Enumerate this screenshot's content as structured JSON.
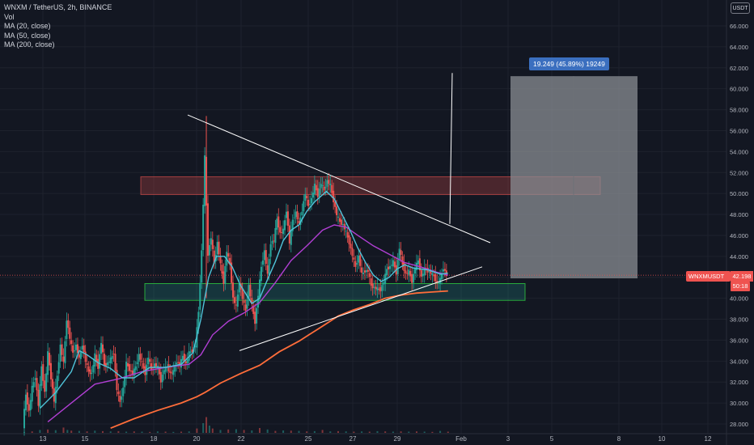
{
  "legend": {
    "symbol": "WNXM / TetherUS, 2h, BINANCE",
    "vol": "Vol",
    "ma20": "MA (20, close)",
    "ma50": "MA (50, close)",
    "ma200": "MA (200, close)"
  },
  "currency_badge": "USDT",
  "measure_label": "19.249 (45.89%) 19249",
  "price_tag": {
    "symbol": "WNXMUSDT",
    "price": "42.198",
    "timer": "50:18"
  },
  "colors": {
    "background": "#131722",
    "grid": "#1e222d",
    "up": "#26a69a",
    "down": "#ef5350",
    "ma20": "#4fc3d9",
    "ma50": "#b13fd4",
    "ma200": "#ff6d3a",
    "resistance_zone": "#ef5350",
    "support_zone": "#26a69a",
    "target_box": "#8a8d93"
  },
  "chart_data": {
    "type": "candlestick",
    "y_ticks": [
      "66.000",
      "64.000",
      "62.000",
      "60.000",
      "58.000",
      "56.000",
      "54.000",
      "52.000",
      "50.000",
      "48.000",
      "46.000",
      "44.000",
      "42.000",
      "40.000",
      "38.000",
      "36.000",
      "34.000",
      "32.000",
      "30.000",
      "28.000"
    ],
    "x_ticks": [
      "13",
      "15",
      "18",
      "20",
      "22",
      "25",
      "27",
      "29",
      "Feb",
      "3",
      "5",
      "8",
      "10",
      "12"
    ],
    "ylim": [
      27.5,
      66.5
    ],
    "price": [
      [
        0,
        27.8
      ],
      [
        4,
        30.8
      ],
      [
        8,
        29.2
      ],
      [
        12,
        31.5
      ],
      [
        16,
        32.5
      ],
      [
        20,
        29.8
      ],
      [
        24,
        33.5
      ],
      [
        28,
        31
      ],
      [
        32,
        34.8
      ],
      [
        36,
        32.4
      ],
      [
        40,
        30.2
      ],
      [
        44,
        32.6
      ],
      [
        48,
        35.5
      ],
      [
        52,
        33.8
      ],
      [
        56,
        38
      ],
      [
        60,
        36.2
      ],
      [
        64,
        34.8
      ],
      [
        68,
        35.5
      ],
      [
        72,
        34.2
      ],
      [
        76,
        35.6
      ],
      [
        80,
        34
      ],
      [
        84,
        33
      ],
      [
        88,
        32.8
      ],
      [
        92,
        34.6
      ],
      [
        96,
        33.4
      ],
      [
        100,
        35.8
      ],
      [
        104,
        33.6
      ],
      [
        108,
        33.8
      ],
      [
        112,
        34.2
      ],
      [
        116,
        34.8
      ],
      [
        120,
        31.3
      ],
      [
        124,
        30.1
      ],
      [
        128,
        31.4
      ],
      [
        132,
        33.8
      ],
      [
        136,
        33.2
      ],
      [
        140,
        32.8
      ],
      [
        144,
        33.5
      ],
      [
        148,
        34.6
      ],
      [
        152,
        33.8
      ],
      [
        156,
        32.8
      ],
      [
        160,
        34.4
      ],
      [
        164,
        33.2
      ],
      [
        168,
        33.7
      ],
      [
        172,
        33.4
      ],
      [
        176,
        32.1
      ],
      [
        180,
        33.2
      ],
      [
        184,
        33.5
      ],
      [
        188,
        32.8
      ],
      [
        192,
        33
      ],
      [
        196,
        34
      ],
      [
        200,
        33.6
      ],
      [
        204,
        34.5
      ],
      [
        208,
        33.7
      ],
      [
        212,
        34.8
      ],
      [
        216,
        35
      ],
      [
        220,
        35.5
      ],
      [
        224,
        38.7
      ],
      [
        228,
        44.5
      ],
      [
        232,
        53.5
      ],
      [
        236,
        44.2
      ],
      [
        240,
        45.8
      ],
      [
        244,
        43.3
      ],
      [
        248,
        45.3
      ],
      [
        252,
        43.2
      ],
      [
        256,
        41.5
      ],
      [
        260,
        44.5
      ],
      [
        264,
        43.2
      ],
      [
        268,
        40
      ],
      [
        272,
        39.2
      ],
      [
        276,
        41.5
      ],
      [
        280,
        40
      ],
      [
        284,
        38.8
      ],
      [
        288,
        41.2
      ],
      [
        292,
        39.3
      ],
      [
        296,
        37.7
      ],
      [
        300,
        40.3
      ],
      [
        304,
        43
      ],
      [
        308,
        44.5
      ],
      [
        312,
        42.2
      ],
      [
        316,
        45.3
      ],
      [
        320,
        45.5
      ],
      [
        324,
        47.6
      ],
      [
        328,
        46.2
      ],
      [
        332,
        46.5
      ],
      [
        336,
        48.4
      ],
      [
        340,
        45.3
      ],
      [
        344,
        47.5
      ],
      [
        348,
        48.2
      ],
      [
        352,
        47
      ],
      [
        356,
        48.4
      ],
      [
        360,
        50
      ],
      [
        364,
        48.8
      ],
      [
        368,
        49.5
      ],
      [
        372,
        50.8
      ],
      [
        376,
        49.8
      ],
      [
        380,
        51
      ],
      [
        384,
        50.3
      ],
      [
        388,
        51.2
      ],
      [
        392,
        50.8
      ],
      [
        396,
        49.3
      ],
      [
        400,
        48
      ],
      [
        404,
        47.3
      ],
      [
        408,
        47
      ],
      [
        412,
        46.3
      ],
      [
        416,
        45.3
      ],
      [
        420,
        44.1
      ],
      [
        424,
        43
      ],
      [
        428,
        44
      ],
      [
        432,
        42.3
      ],
      [
        436,
        42.6
      ],
      [
        440,
        42.6
      ],
      [
        444,
        41.2
      ],
      [
        448,
        41
      ],
      [
        452,
        40.9
      ],
      [
        456,
        40.8
      ],
      [
        460,
        41.6
      ],
      [
        464,
        42.8
      ],
      [
        468,
        43
      ],
      [
        472,
        43.5
      ],
      [
        476,
        42.4
      ],
      [
        480,
        44.8
      ],
      [
        484,
        43.2
      ],
      [
        488,
        42.3
      ],
      [
        492,
        42.6
      ],
      [
        496,
        41.6
      ],
      [
        500,
        42.9
      ],
      [
        504,
        43.6
      ],
      [
        508,
        42
      ],
      [
        512,
        42.8
      ],
      [
        516,
        42.6
      ],
      [
        520,
        42.4
      ],
      [
        524,
        42.1
      ],
      [
        528,
        41.4
      ],
      [
        532,
        41.8
      ],
      [
        536,
        42.9
      ],
      [
        540,
        42.2
      ]
    ],
    "ma20": [
      [
        20,
        29.5
      ],
      [
        40,
        31
      ],
      [
        60,
        33
      ],
      [
        70,
        35
      ],
      [
        80,
        34.6
      ],
      [
        95,
        33.8
      ],
      [
        110,
        33.3
      ],
      [
        125,
        32.4
      ],
      [
        140,
        32.4
      ],
      [
        160,
        33.4
      ],
      [
        180,
        33.4
      ],
      [
        200,
        33.7
      ],
      [
        215,
        34.8
      ],
      [
        225,
        38
      ],
      [
        235,
        42
      ],
      [
        245,
        44
      ],
      [
        255,
        44
      ],
      [
        265,
        43
      ],
      [
        275,
        41.3
      ],
      [
        290,
        39.5
      ],
      [
        300,
        40
      ],
      [
        310,
        41.8
      ],
      [
        320,
        43.5
      ],
      [
        330,
        45.5
      ],
      [
        340,
        46.5
      ],
      [
        350,
        47
      ],
      [
        360,
        48.3
      ],
      [
        370,
        49.2
      ],
      [
        385,
        50.2
      ],
      [
        395,
        49.5
      ],
      [
        405,
        48
      ],
      [
        415,
        46.5
      ],
      [
        425,
        44.8
      ],
      [
        435,
        43.4
      ],
      [
        445,
        42.2
      ],
      [
        455,
        41.6
      ],
      [
        465,
        42
      ],
      [
        475,
        42.8
      ],
      [
        485,
        43.2
      ],
      [
        495,
        42.9
      ],
      [
        505,
        42.8
      ],
      [
        515,
        42.7
      ],
      [
        530,
        42.3
      ],
      [
        540,
        42.4
      ]
    ],
    "ma50": [
      [
        30,
        28.2
      ],
      [
        60,
        30
      ],
      [
        90,
        31.8
      ],
      [
        120,
        32.3
      ],
      [
        150,
        33
      ],
      [
        180,
        33.4
      ],
      [
        210,
        33.7
      ],
      [
        225,
        34.6
      ],
      [
        240,
        36.5
      ],
      [
        260,
        37.8
      ],
      [
        280,
        38.6
      ],
      [
        300,
        39.6
      ],
      [
        320,
        41.5
      ],
      [
        340,
        43.6
      ],
      [
        360,
        45
      ],
      [
        380,
        46.5
      ],
      [
        395,
        47
      ],
      [
        410,
        46.8
      ],
      [
        425,
        46
      ],
      [
        445,
        45
      ],
      [
        465,
        44.2
      ],
      [
        485,
        43.4
      ],
      [
        505,
        43
      ],
      [
        525,
        42.5
      ],
      [
        540,
        42.2
      ]
    ],
    "ma200": [
      [
        110,
        27.6
      ],
      [
        140,
        28.5
      ],
      [
        170,
        29.3
      ],
      [
        200,
        30
      ],
      [
        220,
        30.6
      ],
      [
        230,
        31
      ],
      [
        250,
        31.9
      ],
      [
        275,
        32.8
      ],
      [
        300,
        33.6
      ],
      [
        325,
        34.9
      ],
      [
        350,
        35.9
      ],
      [
        375,
        37.1
      ],
      [
        400,
        38.3
      ],
      [
        420,
        38.9
      ],
      [
        440,
        39.4
      ],
      [
        460,
        40
      ],
      [
        480,
        40.3
      ],
      [
        500,
        40.5
      ],
      [
        520,
        40.6
      ],
      [
        540,
        40.7
      ]
    ],
    "volume": [
      [
        0,
        4
      ],
      [
        10,
        6
      ],
      [
        20,
        12
      ],
      [
        30,
        14
      ],
      [
        40,
        11
      ],
      [
        50,
        22
      ],
      [
        55,
        12
      ],
      [
        60,
        9
      ],
      [
        70,
        8
      ],
      [
        80,
        6
      ],
      [
        90,
        9
      ],
      [
        100,
        7
      ],
      [
        110,
        6
      ],
      [
        120,
        7
      ],
      [
        130,
        5
      ],
      [
        140,
        6
      ],
      [
        150,
        5
      ],
      [
        160,
        4
      ],
      [
        170,
        6
      ],
      [
        180,
        5
      ],
      [
        190,
        4
      ],
      [
        200,
        5
      ],
      [
        210,
        6
      ],
      [
        220,
        18
      ],
      [
        228,
        40
      ],
      [
        232,
        65
      ],
      [
        236,
        30
      ],
      [
        240,
        18
      ],
      [
        250,
        12
      ],
      [
        260,
        14
      ],
      [
        270,
        15
      ],
      [
        280,
        12
      ],
      [
        290,
        10
      ],
      [
        300,
        20
      ],
      [
        310,
        14
      ],
      [
        320,
        8
      ],
      [
        330,
        10
      ],
      [
        340,
        9
      ],
      [
        350,
        8
      ],
      [
        360,
        6
      ],
      [
        370,
        7
      ],
      [
        380,
        12
      ],
      [
        390,
        6
      ],
      [
        400,
        7
      ],
      [
        410,
        6
      ],
      [
        420,
        5
      ],
      [
        430,
        6
      ],
      [
        440,
        5
      ],
      [
        450,
        7
      ],
      [
        460,
        6
      ],
      [
        470,
        5
      ],
      [
        480,
        6
      ],
      [
        490,
        5
      ],
      [
        500,
        6
      ],
      [
        510,
        5
      ],
      [
        520,
        4
      ],
      [
        530,
        8
      ],
      [
        540,
        5
      ]
    ]
  }
}
